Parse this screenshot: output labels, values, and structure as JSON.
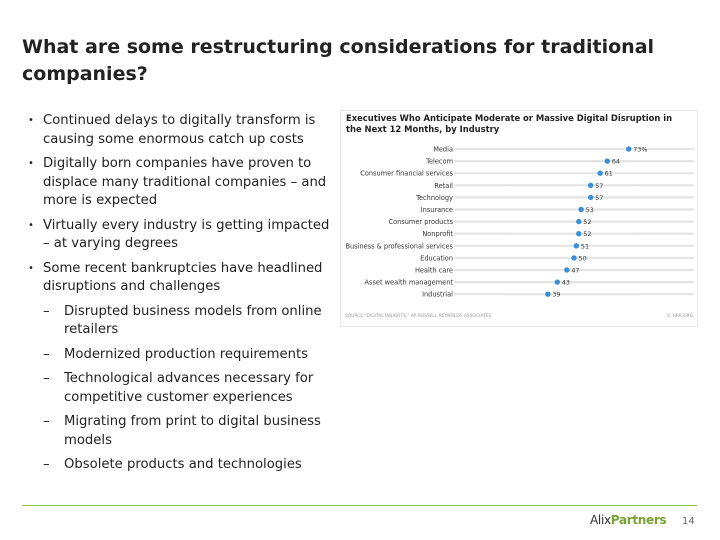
{
  "slide": {
    "title": "What are some restructuring considerations for traditional companies?",
    "bullets": [
      "Continued delays to digitally transform is causing some enormous catch up costs",
      "Digitally born companies have proven to displace many traditional companies – and more is expected",
      "Virtually every industry is getting impacted – at varying degrees",
      "Some recent bankruptcies have headlined disruptions and challenges"
    ],
    "bullet_marker": "•",
    "dash_marker": "–",
    "sub_bullets": [
      "Disrupted business models from online retailers",
      "Modernized production requirements",
      "Technological advances necessary for competitive customer experiences",
      "Migrating from print to digital business models",
      "Obsolete products and technologies"
    ]
  },
  "chart_data": {
    "type": "dot",
    "title": "Executives Who Anticipate Moderate or Massive Digital Disruption in the Next 12 Months, by Industry",
    "categories": [
      "Media",
      "Telecom",
      "Consumer financial services",
      "Retail",
      "Technology",
      "Insurance",
      "Consumer products",
      "Nonprofit",
      "Business & professional services",
      "Education",
      "Health care",
      "Asset wealth management",
      "Industrial"
    ],
    "values": [
      73,
      64,
      61,
      57,
      57,
      53,
      52,
      52,
      51,
      50,
      47,
      43,
      39
    ],
    "value_labels": [
      "73%",
      "64",
      "61",
      "57",
      "57",
      "53",
      "52",
      "52",
      "51",
      "50",
      "47",
      "43",
      "39"
    ],
    "xlim": [
      0,
      100
    ],
    "source": "SOURCE \"DIGITAL INSIGHTS,\" AP RUSSELL REYNOLDS ASSOCIATES",
    "credit": "© HBR.ORG",
    "colors": {
      "dot": "#3a8fd6",
      "track": "#e4e4e4"
    }
  },
  "footer": {
    "logo_part1": "Alix",
    "logo_part2": "Partners",
    "page_number": "14",
    "rule_color": "#8cc63f"
  }
}
